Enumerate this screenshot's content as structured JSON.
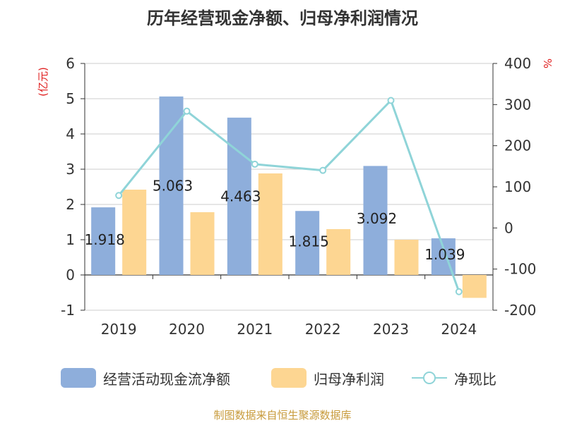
{
  "title": "历年经营现金净额、归母净利润情况",
  "source": "制图数据来自恒生聚源数据库",
  "colors": {
    "ocf": "#8eaedb",
    "np": "#fdd692",
    "ratio": "#8fd4d8",
    "unit": "#e02020",
    "axis": "#333333"
  },
  "chart_data": {
    "type": "bar",
    "categories": [
      "2019",
      "2020",
      "2021",
      "2022",
      "2023",
      "2024"
    ],
    "series": [
      {
        "name": "经营活动现金流净额",
        "type": "bar",
        "axis": "left",
        "values": [
          1.918,
          5.063,
          4.463,
          1.815,
          3.092,
          1.039
        ],
        "labels": [
          "1.918",
          "5.063",
          "4.463",
          "1.815",
          "3.092",
          "1.039"
        ]
      },
      {
        "name": "归母净利润",
        "type": "bar",
        "axis": "left",
        "values": [
          2.42,
          1.78,
          2.88,
          1.3,
          1.0,
          -0.65
        ]
      },
      {
        "name": "净现比",
        "type": "line",
        "axis": "right",
        "values": [
          79,
          284,
          155,
          140,
          310,
          -155
        ]
      }
    ],
    "y_left": {
      "unit": "(亿元)",
      "ylim": [
        -1,
        6
      ],
      "ticks": [
        "-1",
        "0",
        "1",
        "2",
        "3",
        "4",
        "5",
        "6"
      ]
    },
    "y_right": {
      "unit": "%",
      "ylim": [
        -200,
        400
      ],
      "ticks": [
        "-200",
        "-100",
        "0",
        "100",
        "200",
        "300",
        "400"
      ]
    },
    "grid": true,
    "legend_position": "bottom"
  }
}
